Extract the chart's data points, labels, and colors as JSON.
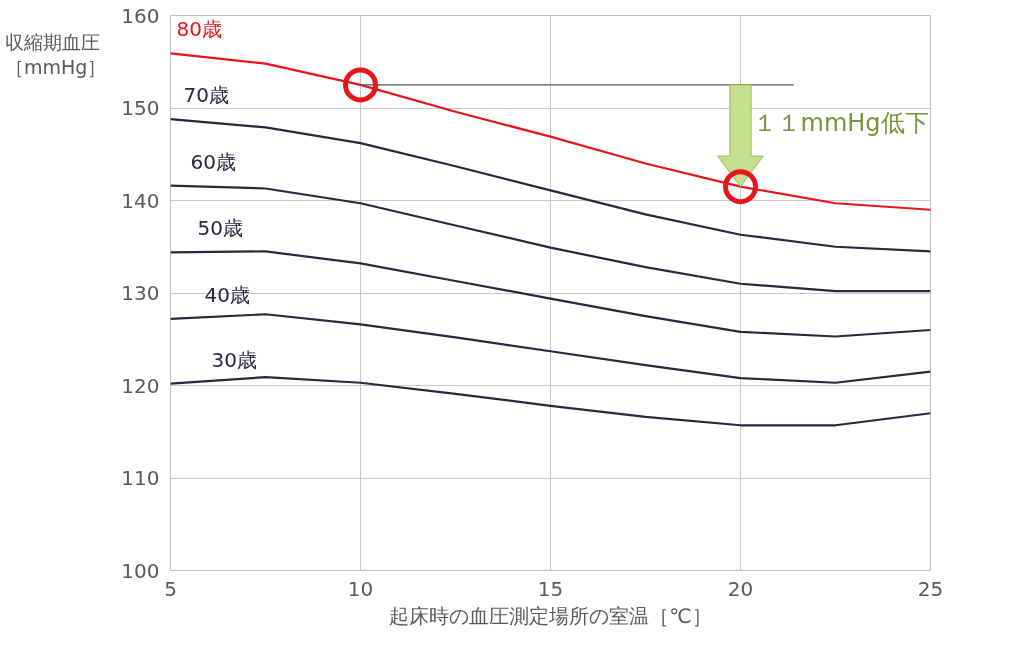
{
  "chart_data": {
    "type": "line",
    "xlabel": "起床時の血圧測定場所の室温［℃］",
    "ylabel": "収縮期血圧［mmHg］",
    "x": [
      5,
      7.5,
      10,
      12.5,
      15,
      17.5,
      20,
      22.5,
      25
    ],
    "series": [
      {
        "name": "80歳",
        "color": "#e8141c",
        "values": [
          155.9,
          154.8,
          152.5,
          149.6,
          146.9,
          144,
          141.5,
          139.7,
          139
        ]
      },
      {
        "name": "70歳",
        "color": "#2b2541",
        "values": [
          148.8,
          147.9,
          146.2,
          143.7,
          141.1,
          138.5,
          136.3,
          135,
          134.5
        ]
      },
      {
        "name": "60歳",
        "color": "#2b2541",
        "values": [
          141.6,
          141.3,
          139.7,
          137.3,
          134.9,
          132.8,
          131,
          130.2,
          130.2
        ]
      },
      {
        "name": "50歳",
        "color": "#2b2541",
        "values": [
          134.4,
          134.5,
          133.2,
          131.3,
          129.4,
          127.5,
          125.8,
          125.3,
          126
        ]
      },
      {
        "name": "40歳",
        "color": "#2b2541",
        "values": [
          127.2,
          127.7,
          126.6,
          125.2,
          123.7,
          122.2,
          120.8,
          120.3,
          121.5
        ]
      },
      {
        "name": "30歳",
        "color": "#2b2541",
        "values": [
          120.2,
          120.9,
          120.3,
          119.1,
          117.8,
          116.6,
          115.7,
          115.7,
          117
        ]
      }
    ],
    "xlim": [
      5,
      25
    ],
    "xticks": [
      5,
      10,
      15,
      20,
      25
    ],
    "ylim": [
      100,
      160
    ],
    "yticks": [
      100,
      110,
      120,
      130,
      140,
      150,
      160
    ],
    "grid": true,
    "marker": "none",
    "line_style": "solid",
    "ref_lines": [
      {
        "axis": "y",
        "value": 152.5,
        "color": "#595959"
      }
    ],
    "annotations": [
      {
        "text": "１１mmHg低下",
        "x": 20,
        "y": 141.5
      }
    ]
  }
}
